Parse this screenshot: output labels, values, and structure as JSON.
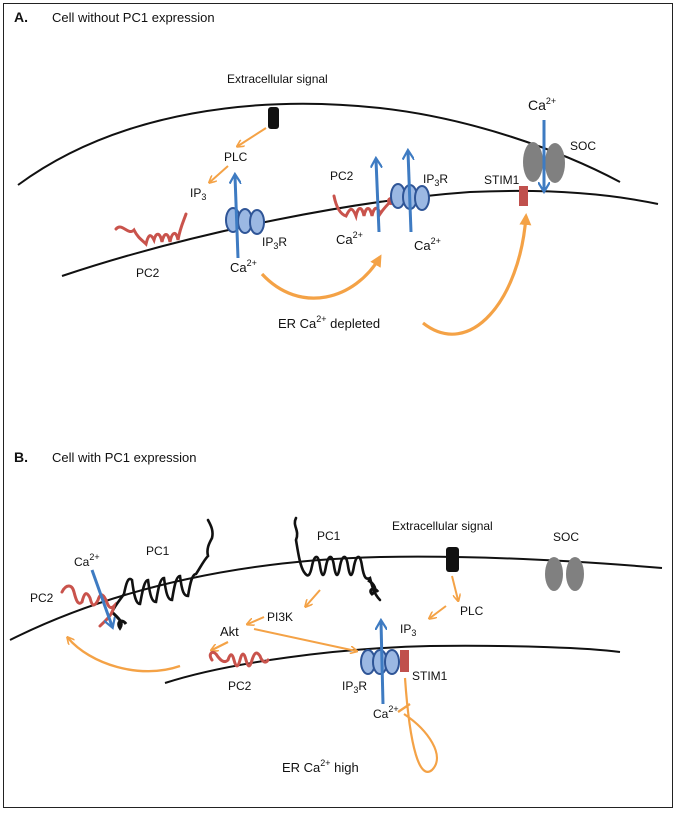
{
  "panel_a": {
    "letter": "A.",
    "title": "Cell without PC1 expression",
    "extracellular_signal": "Extracellular signal",
    "plc": "PLC",
    "ip3": {
      "base": "IP",
      "sub": "3"
    },
    "ip3r_left": {
      "base": "IP",
      "sub": "3",
      "tail": "R"
    },
    "ip3r_mid": {
      "base": "IP",
      "sub": "3",
      "tail": "R"
    },
    "pc2_left": "PC2",
    "pc2_mid": "PC2",
    "ca_er_left": {
      "base": "Ca",
      "sup": "2+"
    },
    "ca_mid_left": {
      "base": "Ca",
      "sup": "2+"
    },
    "ca_mid_right": {
      "base": "Ca",
      "sup": "2+"
    },
    "ca_soc": {
      "base": "Ca",
      "sup": "2+"
    },
    "soc": "SOC",
    "stim1": "STIM1",
    "er_status": {
      "pre": "ER Ca",
      "sup": "2+",
      "post": " depleted"
    }
  },
  "panel_b": {
    "letter": "B.",
    "title": "Cell with PC1 expression",
    "extracellular_signal": "Extracellular signal",
    "pc1_left": "PC1",
    "pc1_mid": "PC1",
    "pc2_left": "PC2",
    "pc2_er": "PC2",
    "ca_pc2": {
      "base": "Ca",
      "sup": "2+"
    },
    "pi3k": "PI3K",
    "akt": "Akt",
    "plc": "PLC",
    "ip3": {
      "base": "IP",
      "sub": "3"
    },
    "ip3r": {
      "base": "IP",
      "sub": "3",
      "tail": "R"
    },
    "stim1": "STIM1",
    "ca_er": {
      "base": "Ca",
      "sup": "2+"
    },
    "soc": "SOC",
    "er_status": {
      "pre": "ER Ca",
      "sup": "2+",
      "post": " high"
    }
  },
  "colors": {
    "membrane": "#111111",
    "arrow_orange": "#F4A246",
    "arrow_blue": "#3E7BC2",
    "pc2_red": "#C9534C",
    "ip3r_fill": "#9BB8E3",
    "ip3r_stroke": "#2F5597",
    "stim1_red": "#C0504D",
    "soc_gray": "#808080",
    "pc1_black": "#111111"
  }
}
